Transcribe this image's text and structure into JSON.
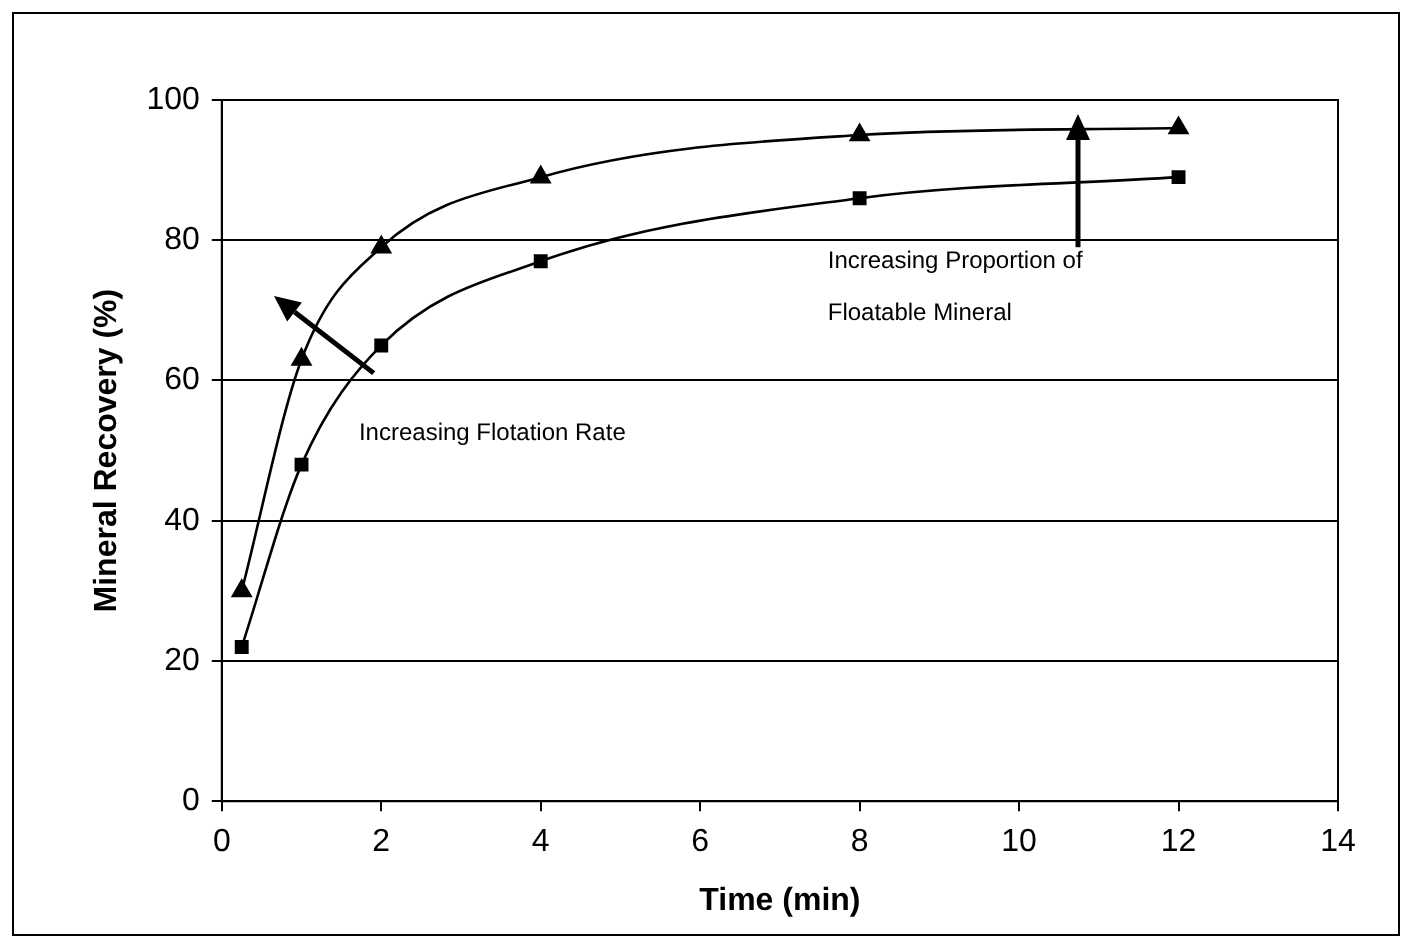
{
  "chart_data": {
    "type": "line",
    "xlabel": "Time (min)",
    "ylabel": "Mineral Recovery (%)",
    "xlim": [
      0,
      14
    ],
    "xticks": [
      0,
      2,
      4,
      6,
      8,
      10,
      12,
      14
    ],
    "ylim": [
      0,
      100
    ],
    "yticks": [
      0,
      20,
      40,
      60,
      80,
      100
    ],
    "grid": "y",
    "legend": false,
    "series": [
      {
        "color": "#000000",
        "marker": "triangle",
        "x": [
          0.25,
          1,
          2,
          4,
          8,
          12
        ],
        "values": [
          30,
          63,
          79,
          89,
          95,
          96
        ]
      },
      {
        "color": "#000000",
        "marker": "square",
        "x": [
          0.25,
          1,
          2,
          4,
          8,
          12
        ],
        "values": [
          22,
          48,
          65,
          77,
          86,
          89
        ]
      }
    ],
    "annotations": [
      "Increasing Flotation Rate",
      "Increasing Proportion of Floatable Mineral"
    ]
  }
}
